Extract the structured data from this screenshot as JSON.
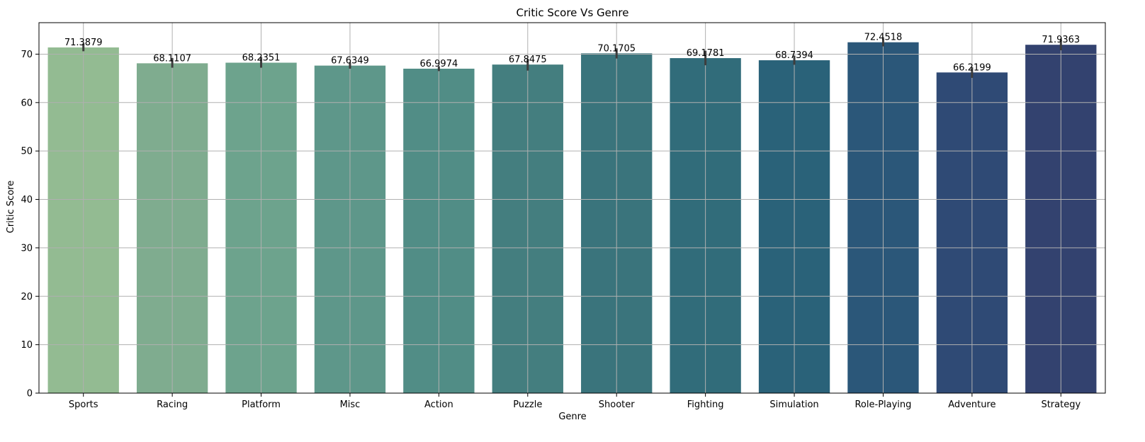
{
  "chart_data": {
    "type": "bar",
    "title": "Critic Score Vs Genre",
    "xlabel": "Genre",
    "ylabel": "Critic Score",
    "categories": [
      "Sports",
      "Racing",
      "Platform",
      "Misc",
      "Action",
      "Puzzle",
      "Shooter",
      "Fighting",
      "Simulation",
      "Role-Playing",
      "Adventure",
      "Strategy"
    ],
    "values": [
      71.3879,
      68.1107,
      68.2351,
      67.6349,
      66.9974,
      67.8475,
      70.1705,
      69.1781,
      68.7394,
      72.4518,
      66.2199,
      71.9363
    ],
    "value_labels": [
      "71.3879",
      "68.1107",
      "68.2351",
      "67.6349",
      "66.9974",
      "67.8475",
      "70.1705",
      "69.1781",
      "68.7394",
      "72.4518",
      "66.2199",
      "71.9363"
    ],
    "error_bars": [
      [
        70.6,
        72.2
      ],
      [
        67.2,
        69.2
      ],
      [
        67.2,
        69.4
      ],
      [
        67.0,
        68.3
      ],
      [
        66.5,
        67.5
      ],
      [
        66.6,
        69.0
      ],
      [
        69.1,
        71.2
      ],
      [
        67.7,
        70.7
      ],
      [
        67.8,
        69.7
      ],
      [
        71.6,
        73.2
      ],
      [
        65.1,
        67.3
      ],
      [
        70.8,
        73.0
      ]
    ],
    "yticks": [
      "0",
      "10",
      "20",
      "30",
      "40",
      "50",
      "60",
      "70"
    ],
    "ylim": [
      0,
      76.5
    ],
    "grid": true,
    "colors": [
      "#93bb92",
      "#7fac8f",
      "#6da38d",
      "#5e978a",
      "#518d86",
      "#447e7f",
      "#3a747c",
      "#316c7a",
      "#2a6279",
      "#2b5779",
      "#2f4a75",
      "#33426f"
    ],
    "error_bar_color": "#3d3d3d",
    "grid_color": "#b0b0b0"
  }
}
